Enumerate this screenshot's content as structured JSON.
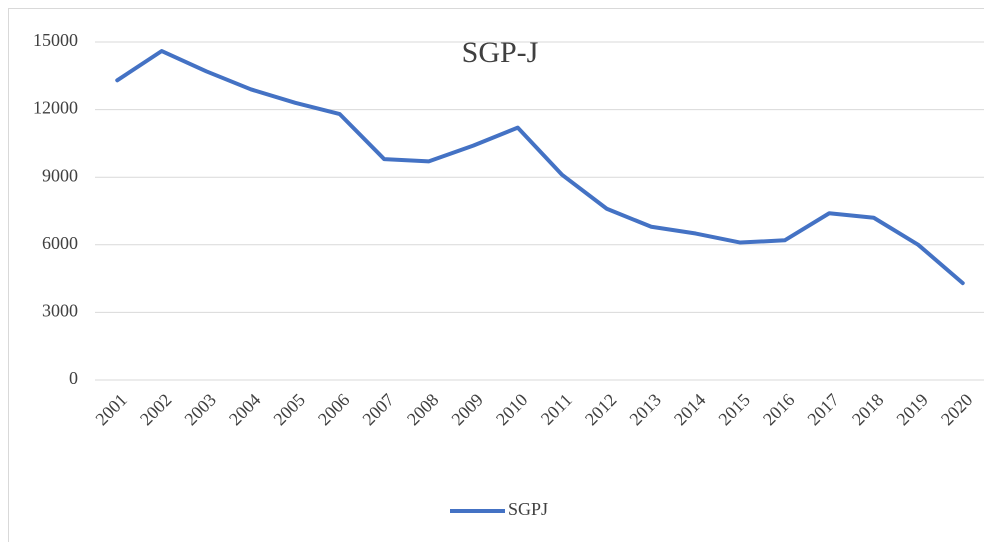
{
  "chart_data": {
    "type": "line",
    "title": "SGP-J",
    "categories": [
      "2001",
      "2002",
      "2003",
      "2004",
      "2005",
      "2006",
      "2007",
      "2008",
      "2009",
      "2010",
      "2011",
      "2012",
      "2013",
      "2014",
      "2015",
      "2016",
      "2017",
      "2018",
      "2019",
      "2020"
    ],
    "series": [
      {
        "name": "SGPJ",
        "color": "#4472c4",
        "values": [
          13300,
          14600,
          13700,
          12900,
          12300,
          11800,
          9800,
          9700,
          10400,
          11200,
          9100,
          7600,
          6800,
          6500,
          6100,
          6200,
          7400,
          7200,
          6000,
          4300
        ]
      }
    ],
    "ylim": [
      0,
      15000
    ],
    "yticks": [
      0,
      3000,
      6000,
      9000,
      12000,
      15000
    ],
    "grid": true,
    "legend": "bottom"
  }
}
